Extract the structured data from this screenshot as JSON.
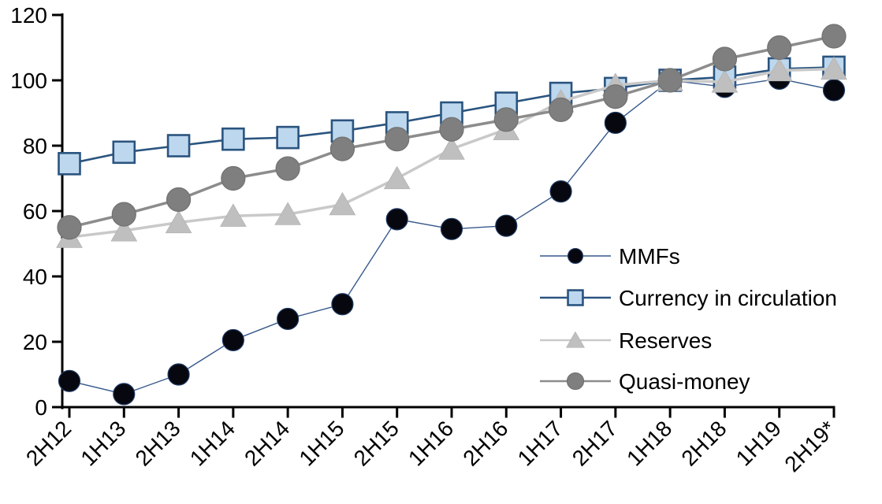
{
  "chart_data": {
    "type": "line",
    "title": "",
    "xlabel": "",
    "ylabel": "",
    "categories": [
      "2H12",
      "1H13",
      "2H13",
      "1H14",
      "2H14",
      "1H15",
      "2H15",
      "1H16",
      "2H16",
      "1H17",
      "2H17",
      "1H18",
      "2H18",
      "1H19",
      "2H19*"
    ],
    "series": [
      {
        "name": "MMFs",
        "marker": "circle",
        "marker_fill": "#07070f",
        "marker_edge": "#1f3a63",
        "marker_size": 13.5,
        "line_color": "#36598c",
        "line_width": 1.4,
        "values": [
          8,
          4,
          10,
          20.5,
          27,
          31.5,
          57.5,
          54.5,
          55.5,
          66,
          87,
          100,
          98,
          100.5,
          97
        ]
      },
      {
        "name": "Currency in circulation",
        "marker": "square",
        "marker_fill": "#bdd7ee",
        "marker_edge": "#2a547f",
        "marker_size": 13.5,
        "line_color": "#2a547f",
        "line_width": 2.6,
        "values": [
          74.5,
          78,
          80,
          82,
          82.5,
          84.5,
          87,
          90,
          93,
          96,
          97.5,
          100,
          101,
          103.5,
          104
        ]
      },
      {
        "name": "Reserves",
        "marker": "triangle",
        "marker_fill": "#bfbfbf",
        "marker_edge": "#b3b3b3",
        "marker_size": 15,
        "line_color": "#c9c9c9",
        "line_width": 3.5,
        "values": [
          52,
          54,
          56.5,
          58.5,
          59,
          62,
          70,
          79,
          85,
          93.5,
          98.5,
          100,
          99.5,
          103,
          103.5
        ]
      },
      {
        "name": "Quasi-money",
        "marker": "circle",
        "marker_fill": "#7f7f7f",
        "marker_edge": "#717171",
        "marker_size": 15,
        "line_color": "#8c8c8c",
        "line_width": 3.5,
        "values": [
          55,
          59,
          63.5,
          70,
          73,
          79,
          82,
          85,
          88,
          91,
          95,
          100,
          106.5,
          110,
          113.5
        ]
      }
    ],
    "ylim": [
      0,
      120
    ],
    "yticks": [
      0,
      20,
      40,
      60,
      80,
      100,
      120
    ],
    "grid": false,
    "legend": {
      "position": "inside-right",
      "entries": [
        "MMFs",
        "Currency in circulation",
        "Reserves",
        "Quasi-money"
      ]
    },
    "axis_color": "#000000",
    "text_color": "#000000",
    "background": "#ffffff"
  }
}
